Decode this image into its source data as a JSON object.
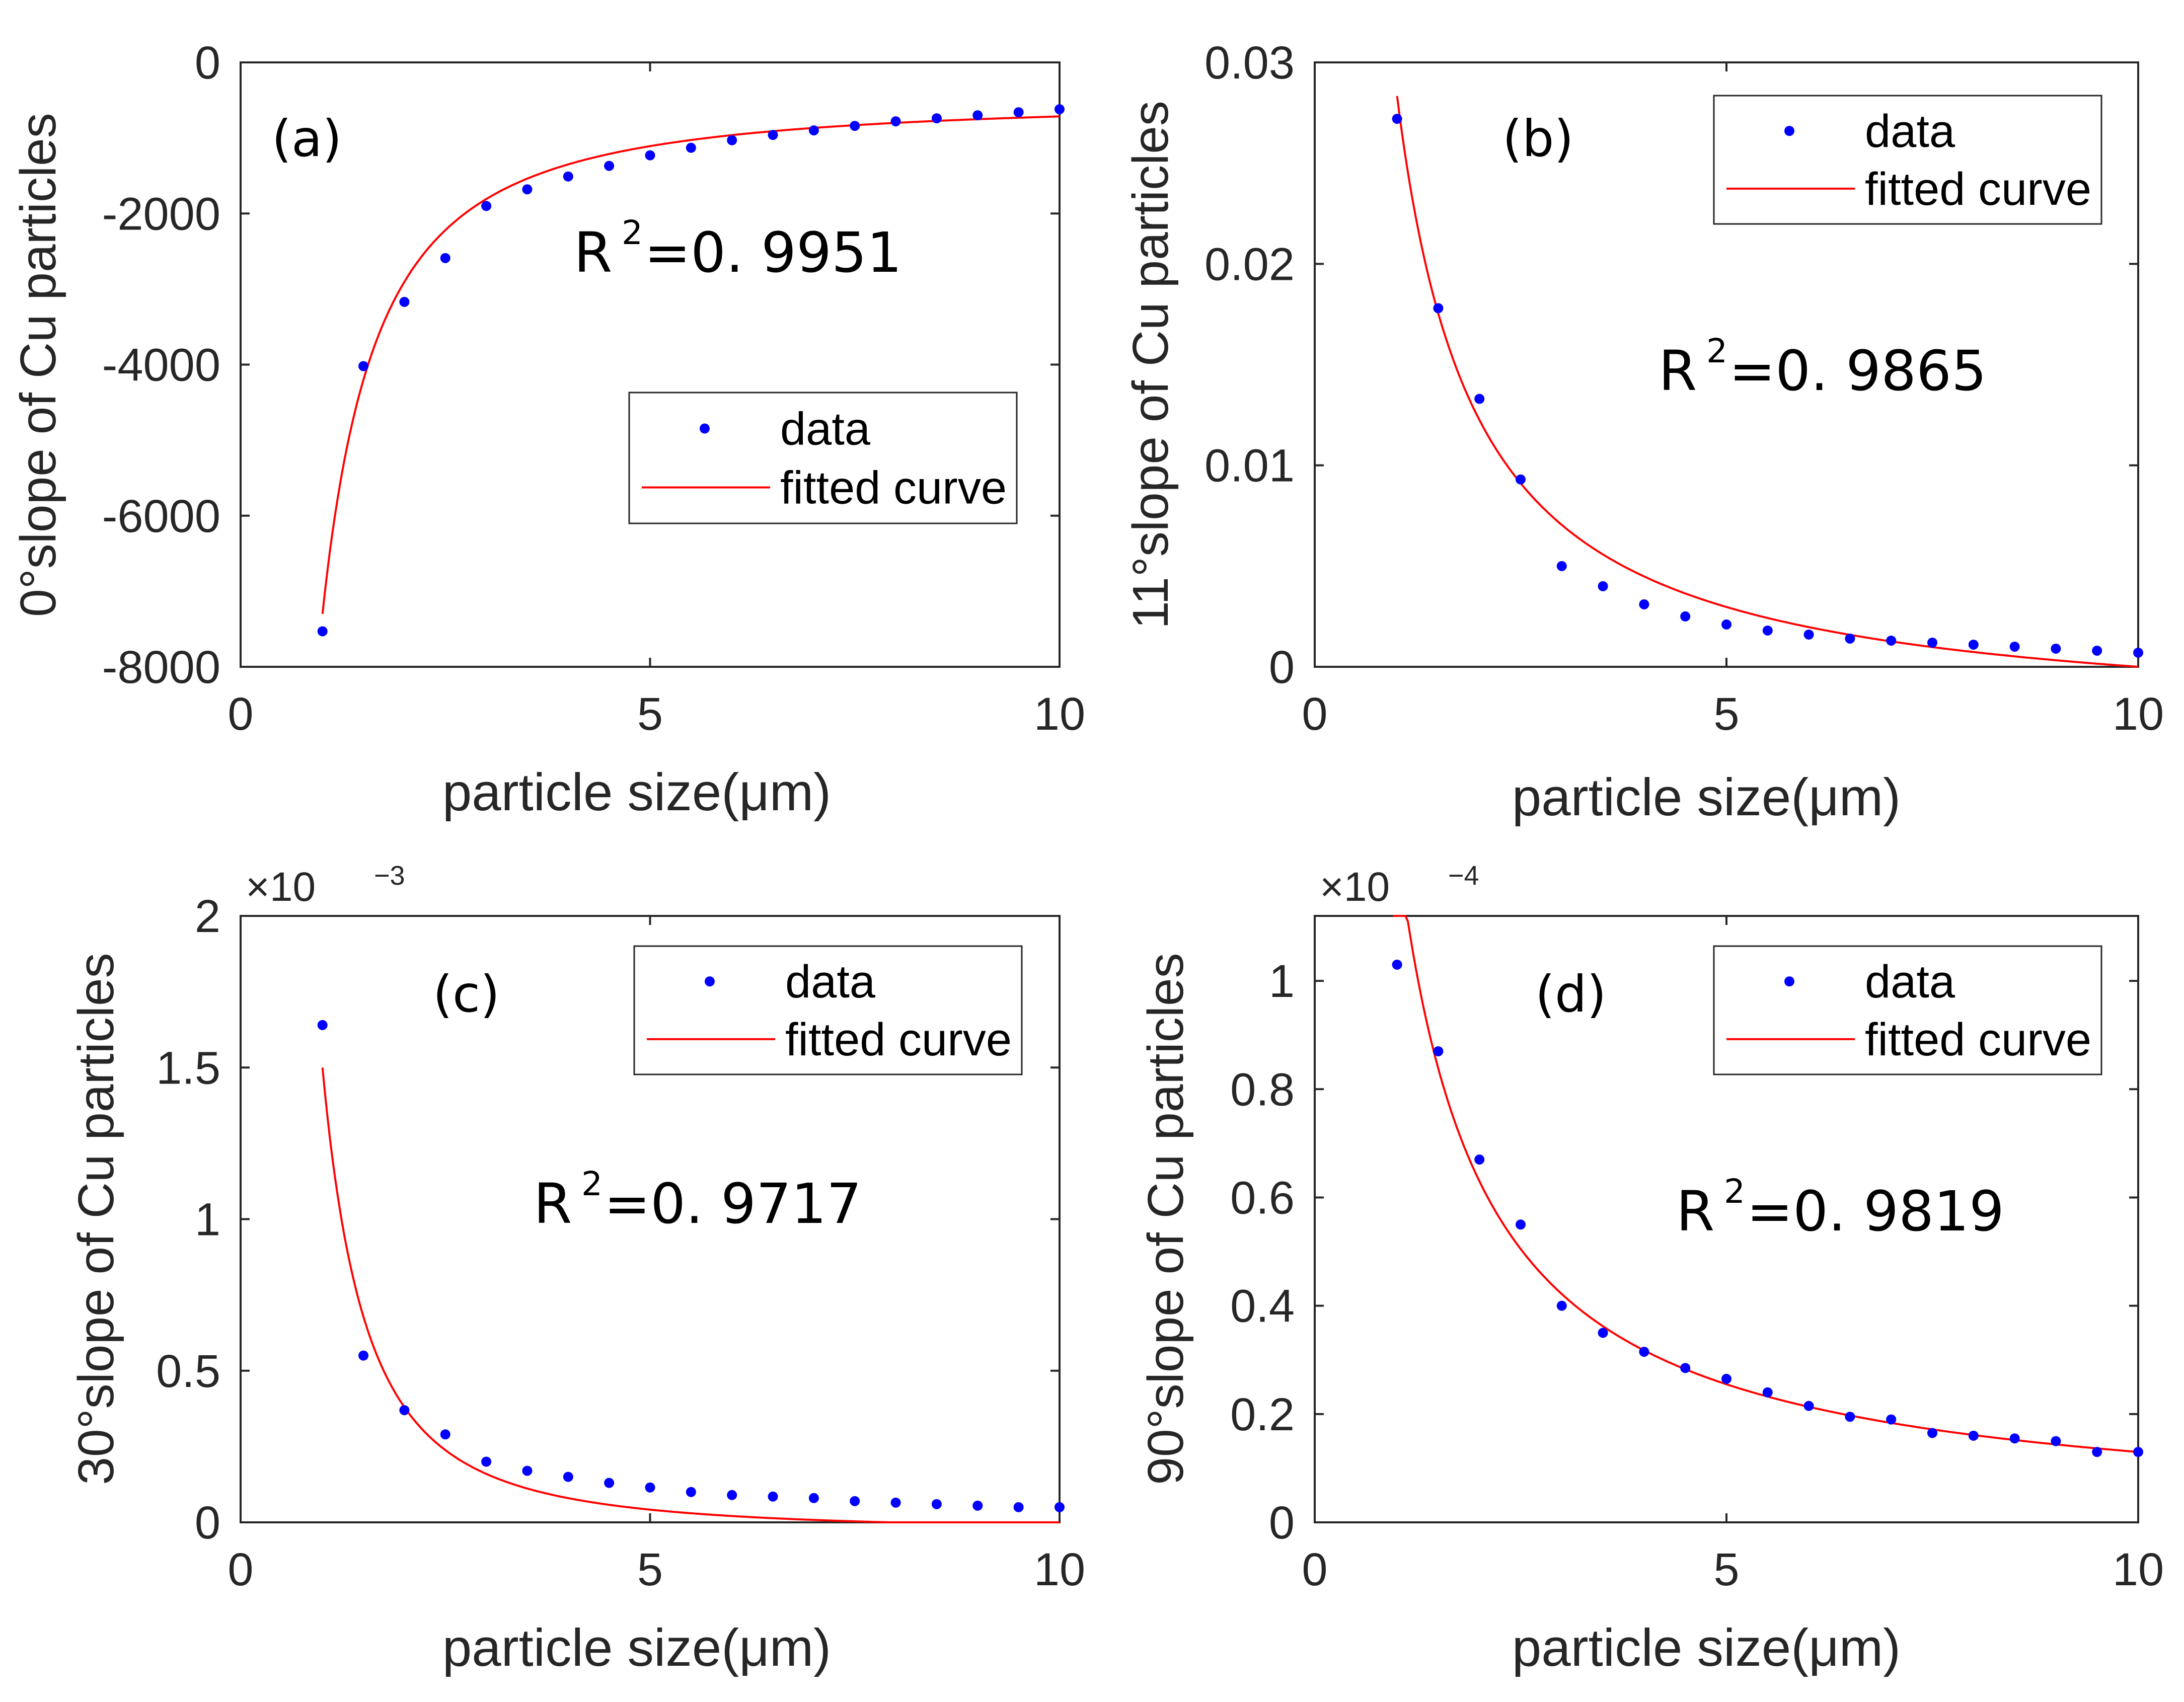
{
  "chart_data": [
    {
      "type": "scatter",
      "panel_label": "(a)",
      "xlabel": "particle size(μm)",
      "ylabel": "0°slope of Cu particles",
      "xlim": [
        0,
        10
      ],
      "ylim": [
        -8000,
        0
      ],
      "xticks": [
        0,
        5,
        10
      ],
      "yticks": [
        0,
        -2000,
        -4000,
        -6000,
        -8000
      ],
      "ytick_labels": [
        "0",
        "-2000",
        "-4000",
        "-6000",
        "-8000"
      ],
      "multiplier": null,
      "multiplier_exp": null,
      "r2_label": "R",
      "r2_sup": "2",
      "r2_value": "=0. 9951",
      "legend": {
        "position": "center-right",
        "data_label": "data",
        "fit_label": "fitted curve"
      },
      "series": [
        {
          "name": "data",
          "style": "dots",
          "x": [
            1,
            1.5,
            2,
            2.5,
            3,
            3.5,
            4,
            4.5,
            5,
            5.5,
            6,
            6.5,
            7,
            7.5,
            8,
            8.5,
            9,
            9.5,
            10
          ],
          "y": [
            -7530,
            -4020,
            -3170,
            -2590,
            -1900,
            -1680,
            -1510,
            -1370,
            -1230,
            -1130,
            -1030,
            -960,
            -900,
            -840,
            -780,
            -740,
            -700,
            -660,
            -620
          ]
        },
        {
          "name": "fitted curve",
          "style": "line",
          "model": {
            "form": "a*x^b+c",
            "a": -6800,
            "b": -1.5,
            "c": -500,
            "x_start": 1,
            "x_end": 10
          }
        }
      ]
    },
    {
      "type": "scatter",
      "panel_label": "(b)",
      "xlabel": "particle size(μm)",
      "ylabel": "11°slope of Cu particles",
      "xlim": [
        0,
        10
      ],
      "ylim": [
        0,
        0.03
      ],
      "xticks": [
        0,
        5,
        10
      ],
      "yticks": [
        0,
        0.01,
        0.02,
        0.03
      ],
      "ytick_labels": [
        "0",
        "0.01",
        "0.02",
        "0.03"
      ],
      "multiplier": null,
      "multiplier_exp": null,
      "r2_label": "R",
      "r2_sup": "2",
      "r2_value": "=0. 9865",
      "legend": {
        "position": "top-right",
        "data_label": "data",
        "fit_label": "fitted curve"
      },
      "series": [
        {
          "name": "data",
          "style": "dots",
          "x": [
            1,
            1.5,
            2,
            2.5,
            3,
            3.5,
            4,
            4.5,
            5,
            5.5,
            6,
            6.5,
            7,
            7.5,
            8,
            8.5,
            9,
            9.5,
            10
          ],
          "y": [
            0.0272,
            0.0178,
            0.0133,
            0.0093,
            0.005,
            0.004,
            0.0031,
            0.0025,
            0.0021,
            0.0018,
            0.0016,
            0.0014,
            0.0013,
            0.0012,
            0.0011,
            0.001,
            0.0009,
            0.0008,
            0.0007
          ]
        },
        {
          "name": "fitted curve",
          "style": "line",
          "model": {
            "form": "a*x^b+c",
            "a": 0.0311,
            "b": -1.05,
            "c": -0.00277,
            "x_start": 1,
            "x_end": 10
          }
        }
      ]
    },
    {
      "type": "scatter",
      "panel_label": "(c)",
      "xlabel": "particle size(μm)",
      "ylabel": "30°slope of Cu particles",
      "xlim": [
        0,
        10
      ],
      "ylim": [
        0,
        2
      ],
      "xticks": [
        0,
        5,
        10
      ],
      "yticks": [
        0,
        0.5,
        1,
        1.5,
        2
      ],
      "ytick_labels": [
        "0",
        "0.5",
        "1",
        "1.5",
        "2"
      ],
      "multiplier": "×10",
      "multiplier_exp": "−3",
      "r2_label": "R",
      "r2_sup": "2",
      "r2_value": "=0. 9717",
      "legend": {
        "position": "top-right",
        "data_label": "data",
        "fit_label": "fitted curve"
      },
      "series": [
        {
          "name": "data",
          "style": "dots",
          "x": [
            1,
            1.5,
            2,
            2.5,
            3,
            3.5,
            4,
            4.5,
            5,
            5.5,
            6,
            6.5,
            7,
            7.5,
            8,
            8.5,
            9,
            9.5,
            10
          ],
          "y": [
            1.64,
            0.55,
            0.37,
            0.29,
            0.2,
            0.17,
            0.15,
            0.13,
            0.115,
            0.1,
            0.09,
            0.085,
            0.08,
            0.07,
            0.065,
            0.06,
            0.055,
            0.05,
            0.05
          ]
        },
        {
          "name": "fitted curve",
          "style": "line",
          "model": {
            "form": "a*x^b+c",
            "a": 1.53,
            "b": -1.9,
            "c": -0.03,
            "x_start": 1,
            "x_end": 10
          }
        }
      ]
    },
    {
      "type": "scatter",
      "panel_label": "(d)",
      "xlabel": "particle size(μm)",
      "ylabel": "90°slope of Cu particles",
      "xlim": [
        0,
        10
      ],
      "ylim": [
        0,
        1.12
      ],
      "xticks": [
        0,
        5,
        10
      ],
      "yticks": [
        0,
        0.2,
        0.4,
        0.6,
        0.8,
        1
      ],
      "ytick_labels": [
        "0",
        "0.2",
        "0.4",
        "0.6",
        "0.8",
        "1"
      ],
      "multiplier": "×10",
      "multiplier_exp": "−4",
      "r2_label": "R",
      "r2_sup": "2",
      "r2_value": "=0. 9819",
      "legend": {
        "position": "top-right",
        "data_label": "data",
        "fit_label": "fitted curve"
      },
      "series": [
        {
          "name": "data",
          "style": "dots",
          "x": [
            1,
            1.5,
            2,
            2.5,
            3,
            3.5,
            4,
            4.5,
            5,
            5.5,
            6,
            6.5,
            7,
            7.5,
            8,
            8.5,
            9,
            9.5,
            10
          ],
          "y": [
            1.03,
            0.87,
            0.67,
            0.55,
            0.4,
            0.35,
            0.315,
            0.285,
            0.265,
            0.24,
            0.215,
            0.195,
            0.19,
            0.165,
            0.16,
            0.155,
            0.15,
            0.13,
            0.13
          ]
        },
        {
          "name": "fitted curve",
          "style": "line",
          "model": {
            "form": "a*x^b+c",
            "a": 1.25,
            "b": -1.0,
            "c": 0.005,
            "x_start": 0.95,
            "x_end": 10
          }
        }
      ]
    }
  ],
  "colors": {
    "data": "#0000ff",
    "fit": "#ff0000",
    "axis": "#262626"
  }
}
